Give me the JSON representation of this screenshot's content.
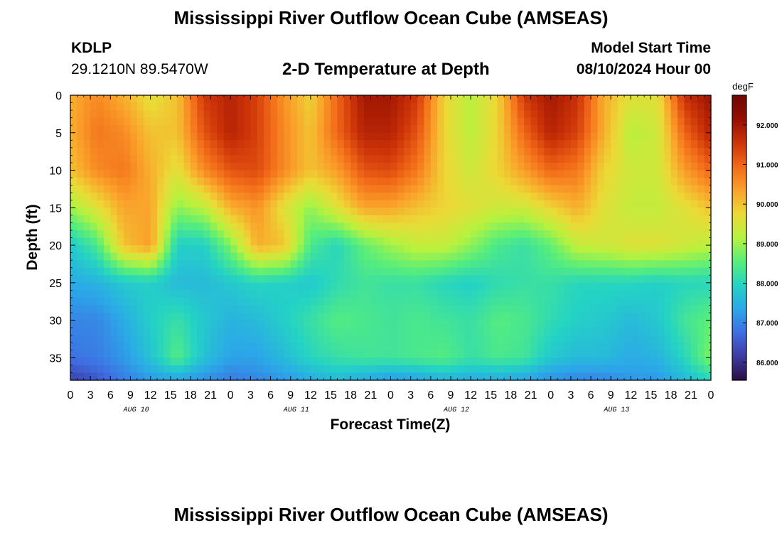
{
  "page": {
    "title": "Mississippi River Outflow Ocean Cube (AMSEAS)",
    "footer_title": "Mississippi River Outflow Ocean Cube (AMSEAS)",
    "station_id": "KDLP",
    "coordinates": "29.1210N  89.5470W",
    "model_start_label": "Model Start Time",
    "model_start_value": "08/10/2024 Hour 00"
  },
  "chart_data": {
    "type": "heatmap",
    "title": "2-D Temperature at Depth",
    "xlabel": "Forecast Time(Z)",
    "ylabel": "Depth (ft)",
    "x_unit": "hours since model start",
    "xlim": [
      0,
      96
    ],
    "ylim": [
      0,
      38
    ],
    "y_inverted": true,
    "x_tick_labels": [
      "0",
      "3",
      "6",
      "9",
      "12",
      "15",
      "18",
      "21",
      "0",
      "3",
      "6",
      "9",
      "12",
      "15",
      "18",
      "21",
      "0",
      "3",
      "6",
      "9",
      "12",
      "15",
      "18",
      "21",
      "0",
      "3",
      "6",
      "9",
      "12",
      "15",
      "18",
      "21",
      "0"
    ],
    "day_labels": [
      "AUG 10",
      "AUG 11",
      "AUG 12",
      "AUG 13"
    ],
    "y_ticks": [
      0,
      5,
      10,
      15,
      20,
      25,
      30,
      35
    ],
    "colorbar": {
      "unit": "degF",
      "range": [
        85.55,
        92.75
      ],
      "ticks": [
        "86.000",
        "87.000",
        "88.000",
        "89.000",
        "90.000",
        "91.000",
        "92.000"
      ],
      "colors": [
        "#2a0f45",
        "#3d3aa1",
        "#3f6ee3",
        "#2ba8e8",
        "#24d3c4",
        "#58ee7a",
        "#b6f23e",
        "#ecd936",
        "#faa12a",
        "#f26a18",
        "#cc3308",
        "#960f02",
        "#6e0601"
      ]
    },
    "hours": [
      0,
      4,
      8,
      12,
      16,
      20,
      24,
      28,
      32,
      36,
      40,
      44,
      48,
      52,
      56,
      60,
      64,
      68,
      72,
      76,
      80,
      84,
      88,
      92,
      96
    ],
    "depths_ft": [
      0,
      5,
      10,
      15,
      20,
      25,
      30,
      35,
      38
    ],
    "temperature_degF": [
      [
        90.2,
        90.6,
        90.2,
        89.6,
        90.0,
        91.5,
        91.8,
        91.4,
        90.5,
        89.8,
        91.0,
        92.0,
        92.0,
        91.5,
        89.8,
        89.2,
        89.8,
        91.5,
        92.0,
        91.6,
        90.2,
        89.6,
        89.6,
        91.6,
        92.1
      ],
      [
        90.2,
        90.8,
        90.6,
        90.0,
        90.0,
        91.2,
        91.8,
        91.4,
        90.6,
        90.0,
        91.0,
        91.8,
        91.8,
        91.2,
        89.8,
        89.2,
        89.8,
        91.0,
        91.8,
        91.4,
        90.2,
        89.2,
        89.4,
        91.0,
        91.8
      ],
      [
        90.0,
        90.6,
        90.8,
        90.2,
        89.6,
        90.6,
        91.2,
        91.3,
        90.6,
        90.0,
        90.4,
        91.2,
        91.3,
        90.8,
        89.8,
        89.4,
        89.8,
        90.4,
        91.0,
        90.8,
        89.8,
        89.4,
        89.4,
        90.4,
        91.0
      ],
      [
        89.0,
        89.6,
        90.3,
        90.3,
        88.9,
        89.2,
        90.2,
        90.5,
        89.6,
        88.9,
        89.6,
        90.3,
        90.3,
        90.0,
        89.8,
        89.6,
        89.4,
        89.4,
        89.8,
        90.2,
        89.6,
        89.3,
        89.3,
        89.6,
        90.0
      ],
      [
        87.8,
        88.4,
        90.0,
        90.4,
        87.9,
        87.9,
        88.8,
        90.2,
        90.0,
        88.4,
        88.0,
        88.6,
        89.0,
        89.3,
        89.3,
        88.9,
        88.4,
        88.2,
        88.6,
        89.3,
        89.4,
        89.6,
        89.6,
        89.4,
        89.2
      ],
      [
        87.4,
        87.5,
        87.8,
        87.9,
        87.6,
        87.6,
        87.8,
        88.0,
        87.9,
        87.8,
        88.1,
        88.3,
        88.2,
        88.2,
        88.0,
        87.9,
        88.1,
        88.2,
        88.2,
        88.0,
        88.0,
        88.0,
        87.9,
        88.0,
        88.0
      ],
      [
        87.0,
        87.0,
        87.4,
        87.9,
        88.2,
        87.8,
        87.5,
        87.6,
        87.9,
        88.2,
        88.5,
        88.4,
        88.3,
        88.4,
        88.3,
        88.2,
        88.5,
        88.4,
        88.1,
        87.9,
        87.8,
        87.6,
        87.8,
        88.3,
        88.6
      ],
      [
        86.8,
        86.9,
        87.2,
        87.7,
        88.5,
        87.7,
        87.3,
        87.3,
        87.6,
        88.0,
        88.2,
        88.3,
        88.3,
        88.4,
        88.5,
        88.2,
        88.4,
        88.3,
        87.8,
        87.6,
        87.6,
        87.4,
        87.5,
        88.0,
        88.8
      ],
      [
        86.2,
        86.5,
        86.9,
        87.2,
        87.3,
        87.1,
        86.9,
        87.0,
        87.2,
        87.4,
        87.6,
        87.4,
        87.2,
        87.3,
        87.5,
        87.4,
        87.4,
        87.3,
        87.1,
        87.0,
        87.0,
        87.2,
        87.2,
        87.6,
        88.0
      ]
    ]
  }
}
